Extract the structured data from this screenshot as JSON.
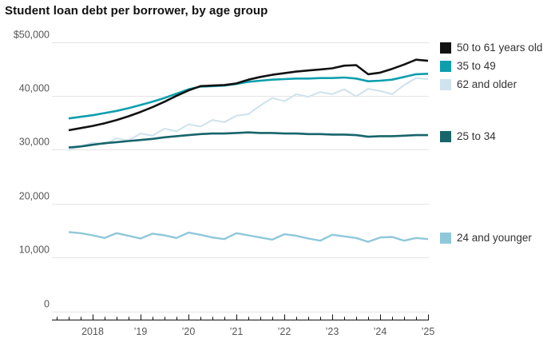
{
  "title": "Student loan debt per borrower, by age group",
  "legend": {
    "items": [
      {
        "label": "50 to 61 years old",
        "color": "#121212"
      },
      {
        "label": "35 to 49",
        "color": "#0d9fae"
      },
      {
        "label": "62 and older",
        "color": "#cfe3ee"
      },
      {
        "label": "25 to 34",
        "color": "#17646b"
      },
      {
        "label": "24 and younger",
        "color": "#8fc8da"
      }
    ]
  },
  "chart_data": {
    "type": "line",
    "title": "Student loan debt per borrower, by age group",
    "xlabel": "",
    "ylabel": "",
    "unit": "USD per borrower",
    "ylim": [
      0,
      50000
    ],
    "grid": "horizontal",
    "legend_position": "right",
    "yticks": [
      0,
      10000,
      20000,
      30000,
      40000,
      50000
    ],
    "ytick_labels": [
      "0",
      "10,000",
      "20,000",
      "30,000",
      "40,000",
      "$50,000"
    ],
    "xticks": [
      2018,
      2019,
      2020,
      2021,
      2022,
      2023,
      2024,
      2025
    ],
    "xtick_labels": [
      "2018",
      "’19",
      "’20",
      "’21",
      "’22",
      "’23",
      "’24",
      "’25"
    ],
    "minor_xtick_interval_years": 0.25,
    "x": [
      2017.5,
      2017.75,
      2018,
      2018.25,
      2018.5,
      2018.75,
      2019,
      2019.25,
      2019.5,
      2019.75,
      2020,
      2020.25,
      2020.5,
      2020.75,
      2021,
      2021.25,
      2021.5,
      2021.75,
      2022,
      2022.25,
      2022.5,
      2022.75,
      2023,
      2023.25,
      2023.5,
      2023.75,
      2024,
      2024.25,
      2024.5,
      2024.75,
      2025
    ],
    "series": [
      {
        "name": "50 to 61 years old",
        "color": "#121212",
        "values": [
          33600,
          34000,
          34400,
          34900,
          35500,
          36200,
          37000,
          37900,
          38900,
          40000,
          41000,
          41800,
          41900,
          42000,
          42300,
          43000,
          43500,
          43900,
          44200,
          44500,
          44700,
          44900,
          45100,
          45600,
          45700,
          44000,
          44300,
          45000,
          45800,
          46700,
          46500
        ]
      },
      {
        "name": "35 to 49",
        "color": "#0d9fae",
        "values": [
          35800,
          36100,
          36400,
          36800,
          37200,
          37700,
          38300,
          38900,
          39600,
          40400,
          41200,
          41700,
          41800,
          41900,
          42200,
          42600,
          42800,
          43000,
          43100,
          43200,
          43200,
          43300,
          43300,
          43400,
          43200,
          42700,
          42800,
          43000,
          43500,
          44000,
          44100
        ]
      },
      {
        "name": "62 and older",
        "color": "#cfe3ee",
        "values": [
          29900,
          30600,
          31300,
          31000,
          32100,
          31700,
          33000,
          32600,
          33900,
          33400,
          34700,
          34300,
          35500,
          35100,
          36300,
          36600,
          38200,
          39600,
          39000,
          40300,
          39800,
          40700,
          40300,
          41200,
          39900,
          41300,
          40900,
          40300,
          42000,
          43300,
          43100
        ]
      },
      {
        "name": "25 to 34",
        "color": "#17646b",
        "values": [
          30400,
          30600,
          30900,
          31200,
          31400,
          31600,
          31800,
          32000,
          32300,
          32500,
          32700,
          32900,
          33000,
          33000,
          33100,
          33200,
          33100,
          33100,
          33000,
          33000,
          32900,
          32900,
          32800,
          32800,
          32700,
          32400,
          32500,
          32500,
          32600,
          32700,
          32700
        ]
      },
      {
        "name": "24 and younger",
        "color": "#8fc8da",
        "values": [
          14700,
          14500,
          14100,
          13600,
          14500,
          14000,
          13500,
          14400,
          14100,
          13600,
          14600,
          14200,
          13700,
          13400,
          14500,
          14100,
          13700,
          13300,
          14300,
          14000,
          13500,
          13100,
          14200,
          13900,
          13600,
          12900,
          13700,
          13800,
          13100,
          13600,
          13400
        ]
      }
    ]
  }
}
